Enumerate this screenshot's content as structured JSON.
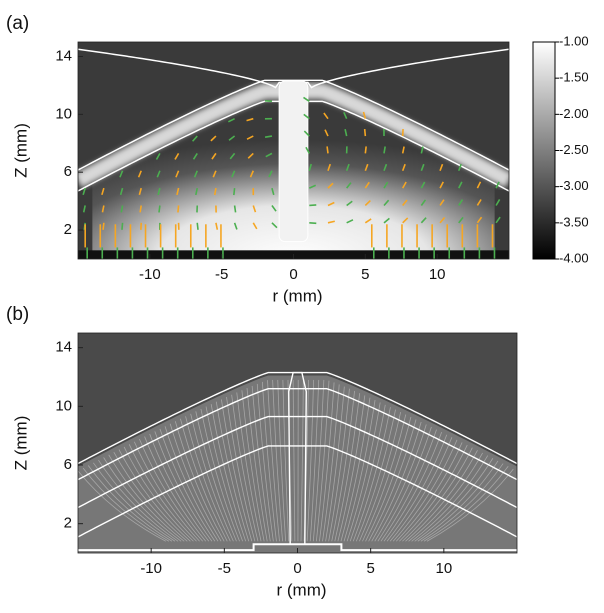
{
  "chart_data": [
    {
      "type": "heatmap",
      "panel_label": "(a)",
      "xlabel": "r (mm)",
      "ylabel": "Z (mm)",
      "xlim": [
        -15,
        15
      ],
      "xticks": [
        -10,
        -5,
        0,
        5,
        10
      ],
      "ylim": [
        0,
        15
      ],
      "yticks": [
        2,
        6,
        10,
        14
      ],
      "clim": [
        -4,
        -1
      ],
      "cticks": [
        {
          "value": -1,
          "label": "-1.00"
        },
        {
          "value": -1.5,
          "label": "-1.50"
        },
        {
          "value": -2,
          "label": "-2.00"
        },
        {
          "value": -2.5,
          "label": "-2.50"
        },
        {
          "value": -3,
          "label": "-3.00"
        },
        {
          "value": -3.5,
          "label": "-3.50"
        },
        {
          "value": -4,
          "label": "-4.00"
        }
      ],
      "colormap": [
        "#000000",
        "#ffffff"
      ]
    },
    {
      "type": "streamlines",
      "panel_label": "(b)",
      "xlabel": "r (mm)",
      "ylabel": "Z (mm)",
      "xlim": [
        -15,
        15
      ],
      "xticks": [
        -10,
        -5,
        0,
        5,
        10
      ],
      "ylim": [
        0,
        15
      ],
      "yticks": [
        2,
        6,
        10,
        14
      ]
    }
  ]
}
